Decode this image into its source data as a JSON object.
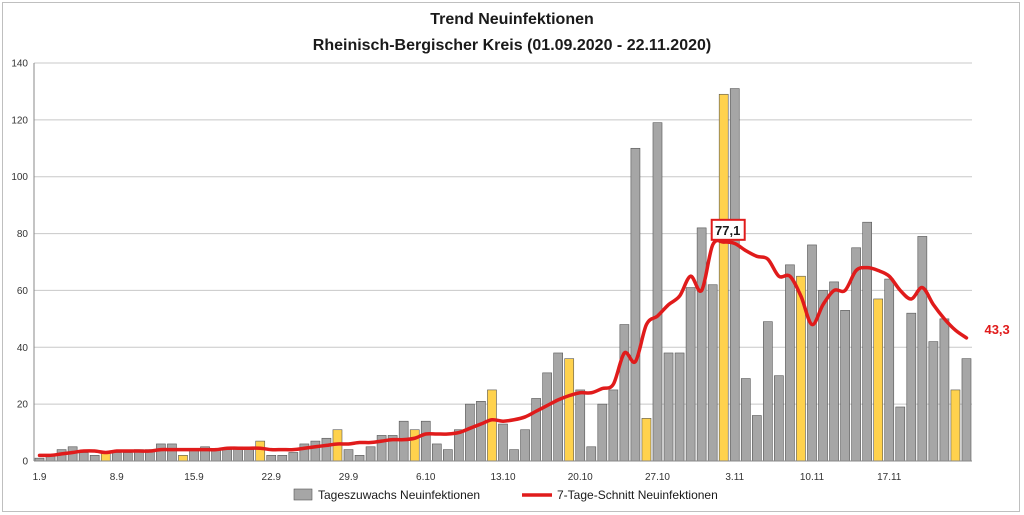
{
  "chart_data": {
    "type": "bar",
    "title": "Trend Neuinfektionen",
    "subtitle": "Rheinisch-Bergischer Kreis (01.09.2020  - 22.11.2020)",
    "xlabel": "",
    "ylabel": "",
    "ylim": [
      0,
      140
    ],
    "yticks": [
      0,
      20,
      40,
      60,
      80,
      100,
      120,
      140
    ],
    "x_tick_labels": [
      "1.9",
      "8.9",
      "15.9",
      "22.9",
      "29.9",
      "6.10",
      "13.10",
      "20.10",
      "27.10",
      "3.11",
      "10.11",
      "17.11"
    ],
    "x_tick_every": 7,
    "grid": true,
    "legend_position": "bottom",
    "colors": {
      "bar_default": "#a6a6a6",
      "bar_highlight": "#ffd24d",
      "bar_stroke": "#555555",
      "line": "#e01b1b",
      "annotation": "#e01b1b",
      "grid": "#c8c8c8"
    },
    "series": [
      {
        "name": "Tageszuwachs Neuinfektionen",
        "type": "bar",
        "values": [
          1,
          2,
          4,
          5,
          3,
          2,
          3,
          3,
          3,
          4,
          4,
          6,
          6,
          2,
          4,
          5,
          4,
          4,
          5,
          4,
          7,
          2,
          2,
          3,
          6,
          7,
          8,
          11,
          4,
          2,
          5,
          9,
          9,
          14,
          11,
          14,
          6,
          4,
          11,
          20,
          21,
          25,
          13,
          4,
          11,
          22,
          31,
          38,
          36,
          25,
          5,
          20,
          25,
          48,
          110,
          15,
          119,
          38,
          38,
          61,
          82,
          62,
          129,
          131,
          29,
          16,
          49,
          30,
          69,
          65,
          76,
          60,
          63,
          53,
          75,
          84,
          57,
          64,
          19,
          52,
          79,
          42,
          50,
          25,
          36
        ],
        "highlight_days": [
          7,
          14,
          21,
          28,
          35,
          42,
          49,
          56,
          63,
          70,
          77,
          84
        ]
      },
      {
        "name": "7-Tage-Schnitt Neuinfektionen",
        "type": "line",
        "values": [
          2,
          2,
          2.5,
          3,
          3.5,
          3.5,
          3,
          3.5,
          3.5,
          3.5,
          3.5,
          4,
          4,
          4,
          4,
          4,
          4,
          4.5,
          4.5,
          4.5,
          4.5,
          4,
          4,
          4,
          4.5,
          5,
          5.5,
          6,
          6,
          6.5,
          6.5,
          7,
          7.5,
          7.5,
          8,
          9.5,
          9.5,
          9.5,
          10,
          11.5,
          13,
          14.5,
          14,
          14.5,
          15.5,
          17.5,
          19.5,
          21.5,
          23,
          24,
          24,
          25.5,
          27,
          38,
          35,
          48,
          51,
          55,
          58,
          65,
          60,
          76,
          77,
          76.5,
          74,
          72,
          71,
          65,
          65,
          58,
          48,
          55,
          60,
          60,
          67,
          68,
          67,
          65,
          60,
          57,
          61,
          55,
          50,
          46,
          43.3
        ]
      }
    ],
    "annotations": [
      {
        "label": "77,1",
        "x_index": 62,
        "value": 77.1,
        "boxed": true
      },
      {
        "label": "43,3",
        "x_index": 84,
        "value": 43.3,
        "boxed": false
      }
    ]
  }
}
